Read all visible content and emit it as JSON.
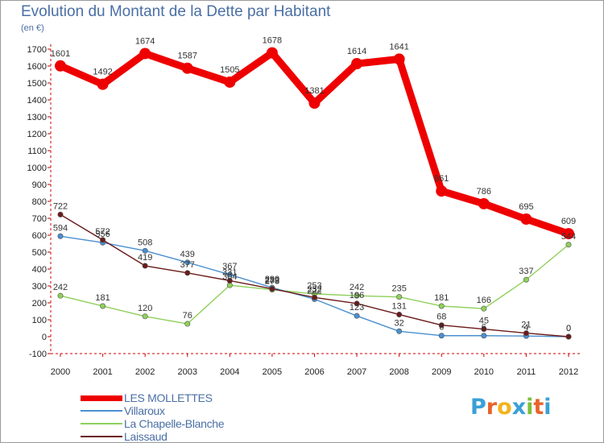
{
  "header": {
    "title": "Evolution du Montant de la Dette par Habitant",
    "subtitle": "(en €)"
  },
  "logo": {
    "text": "Proxiti",
    "colors": [
      "#3aa0d8",
      "#e8632b",
      "#f2b31f",
      "#3aa0d8",
      "#7bbf3a",
      "#e8632b",
      "#3aa0d8"
    ]
  },
  "chart_data": {
    "type": "line",
    "title": "Evolution du Montant de la Dette par Habitant",
    "subtitle": "(en €)",
    "xlabel": "",
    "ylabel": "",
    "x": [
      "2000",
      "2001",
      "2002",
      "2003",
      "2004",
      "2005",
      "2006",
      "2007",
      "2008",
      "2009",
      "2010",
      "2011",
      "2012"
    ],
    "ylim": [
      -100,
      1700
    ],
    "yticks": [
      -100,
      0,
      100,
      200,
      300,
      400,
      500,
      600,
      700,
      800,
      900,
      1000,
      1100,
      1200,
      1300,
      1400,
      1500,
      1600,
      1700
    ],
    "grid": false,
    "legend_position": "bottom-left",
    "series": [
      {
        "name": "LES MOLLETTES",
        "color": "#ee0000",
        "values": [
          1601,
          1492,
          1674,
          1587,
          1505,
          1678,
          1381,
          1614,
          1641,
          861,
          786,
          695,
          609
        ],
        "labels": [
          "1601",
          "1492",
          "1674",
          "1587",
          "1505",
          "1678",
          "1381",
          "1614",
          "1641",
          "861",
          "786",
          "695",
          "609"
        ]
      },
      {
        "name": "Villaroux",
        "color": "#4a8fd0",
        "values": [
          594,
          556,
          508,
          439,
          367,
          290,
          222,
          123,
          32,
          6,
          6,
          4,
          0
        ],
        "labels": [
          "594",
          "556",
          "508",
          "439",
          "367",
          "290",
          "222",
          "123",
          "32",
          "6",
          "6",
          "4",
          "0"
        ]
      },
      {
        "name": "La Chapelle-Blanche",
        "color": "#8fd05a",
        "values": [
          242,
          181,
          120,
          76,
          304,
          278,
          253,
          242,
          235,
          181,
          166,
          337,
          544
        ],
        "labels": [
          "242",
          "181",
          "120",
          "76",
          "304",
          "278",
          "253",
          "242",
          "235",
          "181",
          "166",
          "337",
          "544"
        ]
      },
      {
        "name": "Laissaud",
        "color": "#6a1a1a",
        "values": [
          722,
          572,
          419,
          377,
          331,
          283,
          232,
          196,
          131,
          68,
          45,
          21,
          0
        ],
        "labels": [
          "722",
          "572",
          "419",
          "377",
          "331",
          "283",
          "232",
          "196",
          "131",
          "68",
          "45",
          "21",
          "0"
        ]
      }
    ]
  }
}
